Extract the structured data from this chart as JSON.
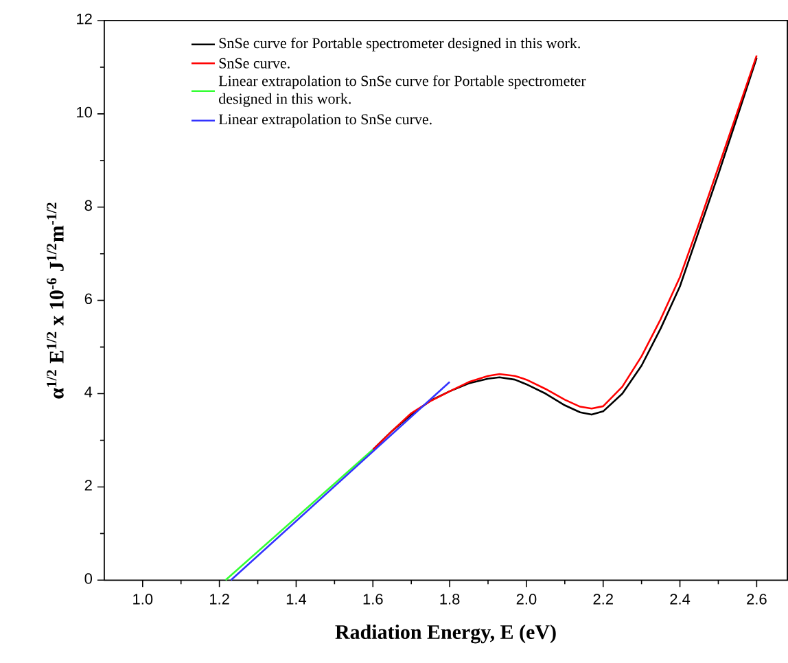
{
  "chart_data": {
    "type": "line",
    "xlabel": "Radiation Energy, E (eV)",
    "ylabel": "α$^{1/2}$ E$^{1/2}$ x 10$^{-6}$ J$^{1/2}$m$^{-1/2}$",
    "xlim": [
      0.9,
      2.68
    ],
    "ylim": [
      0,
      12
    ],
    "xticks": [
      {
        "value": 1.0,
        "label": "1.0"
      },
      1.2,
      1.4,
      1.6,
      1.8,
      {
        "value": 2.0,
        "label": "2.0"
      },
      2.2,
      2.4,
      2.6
    ],
    "yticks": [
      0,
      2,
      4,
      6,
      8,
      10,
      12
    ],
    "legend": "top left",
    "grid": false,
    "marker": "none",
    "line_style": "solid",
    "series": [
      {
        "name": "SnSe curve for Portable spectrometer designed in this work.",
        "color": "#000000",
        "x": [
          1.6,
          1.65,
          1.7,
          1.75,
          1.8,
          1.85,
          1.9,
          1.93,
          1.97,
          2.0,
          2.05,
          2.1,
          2.14,
          2.17,
          2.2,
          2.25,
          2.3,
          2.35,
          2.4,
          2.45,
          2.5,
          2.55,
          2.6
        ],
        "values": [
          2.8,
          3.2,
          3.55,
          3.85,
          4.05,
          4.22,
          4.32,
          4.35,
          4.3,
          4.2,
          4.0,
          3.75,
          3.6,
          3.55,
          3.62,
          4.0,
          4.6,
          5.4,
          6.3,
          7.5,
          8.7,
          9.95,
          11.2
        ]
      },
      {
        "name": "SnSe curve.",
        "color": "#ff0000",
        "x": [
          1.6,
          1.65,
          1.7,
          1.75,
          1.8,
          1.85,
          1.9,
          1.93,
          1.97,
          2.0,
          2.05,
          2.1,
          2.14,
          2.17,
          2.2,
          2.25,
          2.3,
          2.35,
          2.4,
          2.45,
          2.5,
          2.55,
          2.6
        ],
        "values": [
          2.8,
          3.2,
          3.58,
          3.84,
          4.05,
          4.25,
          4.38,
          4.42,
          4.38,
          4.3,
          4.1,
          3.87,
          3.72,
          3.68,
          3.73,
          4.15,
          4.8,
          5.6,
          6.5,
          7.65,
          8.85,
          10.05,
          11.25
        ]
      },
      {
        "name": "Linear extrapolation to SnSe curve for Portable spectrometer designed in this work.",
        "color": "#33ff33",
        "x": [
          1.216,
          1.6
        ],
        "values": [
          0,
          2.8
        ]
      },
      {
        "name": "Linear extrapolation to SnSe curve.",
        "color": "#3333ff",
        "x": [
          1.23,
          1.8
        ],
        "values": [
          0,
          4.25
        ]
      }
    ]
  }
}
